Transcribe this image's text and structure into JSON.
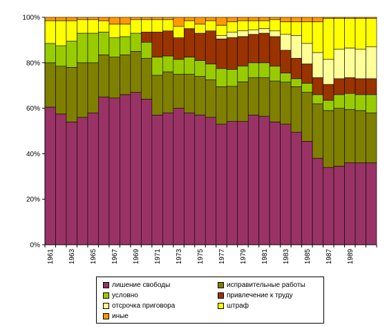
{
  "chart_data": {
    "type": "bar",
    "stacked": "percent",
    "x": [
      1961,
      1962,
      1963,
      1964,
      1965,
      1966,
      1967,
      1968,
      1969,
      1970,
      1971,
      1972,
      1973,
      1974,
      1975,
      1976,
      1977,
      1978,
      1979,
      1980,
      1981,
      1982,
      1983,
      1984,
      1985,
      1986,
      1987,
      1988,
      1989,
      1990,
      1991
    ],
    "x_tick_labels": [
      "1961",
      "1963",
      "1965",
      "1967",
      "1969",
      "1971",
      "1973",
      "1975",
      "1977",
      "1979",
      "1981",
      "1983",
      "1985",
      "1987",
      "1989"
    ],
    "y_tick_labels": [
      "0%",
      "20%",
      "40%",
      "60%",
      "80%",
      "100%"
    ],
    "ylim": [
      0,
      100
    ],
    "grid": false,
    "legend_position": "bottom",
    "series": [
      {
        "name": "лишение свободы",
        "color": "#993366",
        "values": [
          60.5,
          57.5,
          54,
          56,
          58,
          65,
          64.5,
          66,
          67,
          64,
          57,
          58,
          60,
          58,
          57,
          56,
          53,
          54.5,
          54.5,
          57,
          56.5,
          54,
          53,
          49.5,
          45.5,
          38,
          34,
          34.5,
          36,
          36,
          36
        ]
      },
      {
        "name": "исправительные работы",
        "color": "#808000",
        "values": [
          19.5,
          21,
          24,
          24,
          22,
          18.5,
          18,
          17.5,
          18,
          18,
          17.5,
          18,
          15,
          17,
          17,
          16.5,
          16.5,
          15.5,
          17.5,
          16.5,
          17,
          18,
          18.5,
          20,
          21.5,
          24,
          25,
          25.5,
          23.5,
          23,
          22
        ]
      },
      {
        "name": "условно",
        "color": "#99CC00",
        "values": [
          8.5,
          9,
          11.5,
          13,
          13,
          10,
          8.5,
          8,
          8,
          7,
          8,
          7,
          6.5,
          7.5,
          7,
          7,
          8,
          7.5,
          7,
          6.5,
          6.5,
          6.5,
          4,
          3.5,
          4,
          4,
          4.5,
          6,
          7,
          7,
          8
        ]
      },
      {
        "name": "привлечение к труду",
        "color": "#993300",
        "values": [
          0,
          0,
          0,
          0,
          0,
          0,
          0,
          0,
          0,
          4.5,
          11,
          11,
          9.5,
          12.5,
          12,
          14.5,
          13,
          14,
          13,
          12.5,
          13,
          13,
          10,
          9,
          8.5,
          7.5,
          7,
          7,
          7,
          7,
          7
        ]
      },
      {
        "name": "отсрочка приговора",
        "color": "#FFFF99",
        "values": [
          0,
          0,
          0,
          0,
          0,
          0,
          0,
          0,
          0,
          0,
          0,
          0,
          0,
          0,
          0,
          0,
          1.5,
          2.5,
          2.5,
          2,
          2,
          2.5,
          7,
          10,
          9,
          11,
          11,
          13,
          13,
          13,
          14
        ]
      },
      {
        "name": "штраф",
        "color": "#FFFF00",
        "values": [
          10,
          11,
          9,
          6,
          6,
          5,
          6,
          5.5,
          6,
          5.5,
          5.5,
          5,
          5,
          3.5,
          4,
          4.5,
          4.5,
          4.5,
          4.5,
          4,
          3.5,
          5,
          5.5,
          6,
          9.5,
          13.5,
          18,
          13.5,
          13,
          13.5,
          12.5
        ]
      },
      {
        "name": "иные",
        "color": "#FF9900",
        "values": [
          1.5,
          1.5,
          1.5,
          1,
          1,
          1.5,
          3,
          3,
          1,
          1,
          1,
          1,
          4,
          1.5,
          3,
          1.5,
          3.5,
          2,
          1.5,
          1.5,
          1.5,
          1,
          2,
          2,
          2,
          2,
          0.5,
          0.5,
          0.5,
          0.5,
          0.5
        ]
      }
    ]
  }
}
